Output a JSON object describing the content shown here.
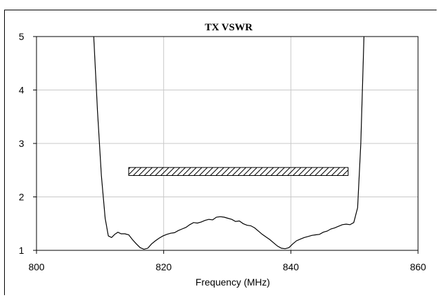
{
  "chart_data": {
    "type": "line",
    "title": "TX VSWR",
    "xlabel": "Frequency (MHz)",
    "ylabel": "",
    "xlim": [
      800,
      860
    ],
    "ylim": [
      1,
      5
    ],
    "x_ticks": [
      "800",
      "820",
      "840",
      "860"
    ],
    "y_ticks": [
      "1",
      "2",
      "3",
      "4",
      "5"
    ],
    "grid": true,
    "legend": "none",
    "series": [
      {
        "x": [
          809.0,
          809.6,
          810.2,
          810.8,
          811.3,
          811.8,
          812.3,
          812.8,
          813.3,
          813.9,
          814.5,
          815.1,
          815.7,
          816.3,
          816.9,
          817.5,
          818.1,
          818.7,
          819.3,
          819.9,
          820.5,
          821.1,
          821.7,
          822.3,
          822.9,
          823.5,
          824.1,
          824.7,
          825.3,
          825.9,
          826.5,
          827.1,
          827.7,
          828.3,
          828.9,
          829.5,
          830.1,
          830.7,
          831.3,
          831.9,
          832.5,
          833.1,
          833.7,
          834.3,
          834.9,
          835.5,
          836.1,
          836.7,
          837.3,
          837.9,
          838.5,
          839.1,
          839.7,
          840.3,
          840.9,
          841.5,
          842.1,
          842.7,
          843.3,
          843.9,
          844.5,
          845.1,
          845.7,
          846.3,
          846.9,
          847.5,
          848.1,
          848.7,
          849.3,
          849.9,
          850.5,
          851.0,
          851.5
        ],
        "values": [
          5.0,
          3.6,
          2.4,
          1.6,
          1.27,
          1.24,
          1.3,
          1.34,
          1.31,
          1.31,
          1.29,
          1.2,
          1.12,
          1.05,
          1.02,
          1.04,
          1.12,
          1.18,
          1.23,
          1.27,
          1.3,
          1.32,
          1.33,
          1.37,
          1.4,
          1.43,
          1.48,
          1.52,
          1.51,
          1.53,
          1.56,
          1.58,
          1.57,
          1.62,
          1.63,
          1.62,
          1.6,
          1.58,
          1.54,
          1.55,
          1.5,
          1.47,
          1.46,
          1.42,
          1.36,
          1.3,
          1.25,
          1.2,
          1.14,
          1.08,
          1.04,
          1.03,
          1.05,
          1.12,
          1.18,
          1.21,
          1.24,
          1.26,
          1.28,
          1.29,
          1.3,
          1.34,
          1.36,
          1.4,
          1.42,
          1.45,
          1.48,
          1.49,
          1.48,
          1.52,
          1.8,
          3.0,
          5.0
        ]
      }
    ],
    "spec_band": {
      "x": [
        814.5,
        849.0
      ],
      "y": [
        2.4,
        2.55
      ],
      "style": "hatched"
    }
  }
}
